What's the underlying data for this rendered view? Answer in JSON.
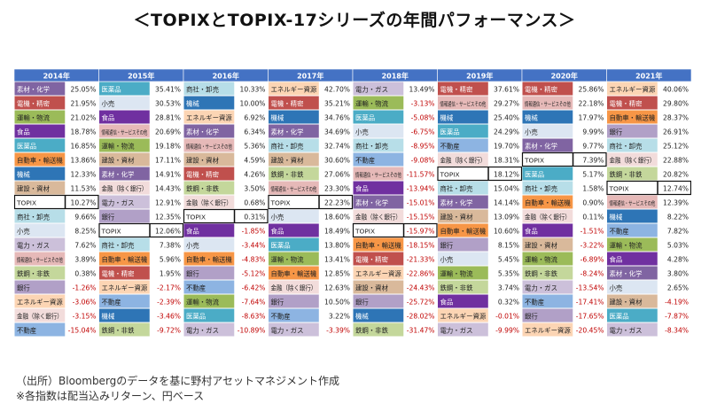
{
  "title": "＜TOPIXとTOPIX-17シリーズの年間パフォーマンス＞",
  "source_lines": [
    "（出所）Bloombergのデータを基に野村アセットマネジメント作成",
    "※各指数は配当込みリターン、円ベース"
  ],
  "colors": {
    "header_bg": "#4472c4",
    "header_text": "#ffffff",
    "sectors": {
      "素材・化学": "#8064a2",
      "電機・精密": "#c0504d",
      "運輸・物流": "#9bbb59",
      "食品": "#7030a0",
      "医薬品": "#4bacc6",
      "自動車・輸送機": "#f79646",
      "機械": "#2e75b6",
      "建設・資材": "#d9b99b",
      "TOPIX": "#ffffff",
      "商社・卸売": "#b7dee8",
      "小売": "#dce6f2",
      "電力・ガス": "#ccc0da",
      "情報通信・サービスその他": "#e6b9b8",
      "鉄鋼・非鉄": "#c4d79b",
      "銀行": "#b1a0c7",
      "エネルギー資源": "#fcd5b4",
      "金融（除く銀行）": "#f2dcdb",
      "不動産": "#8db4e2"
    }
  },
  "chart_data": {
    "type": "table",
    "title": "＜TOPIXとTOPIX-17シリーズの年間パフォーマンス＞",
    "years": [
      "2014年",
      "2015年",
      "2016年",
      "2017年",
      "2018年",
      "2019年",
      "2020年",
      "2021年"
    ],
    "columns": [
      {
        "year": "2014年",
        "rows": [
          {
            "name": "素材・化学",
            "value": "25.05%"
          },
          {
            "name": "電機・精密",
            "value": "21.95%"
          },
          {
            "name": "運輸・物流",
            "value": "21.02%"
          },
          {
            "name": "食品",
            "value": "18.78%"
          },
          {
            "name": "医薬品",
            "value": "16.85%"
          },
          {
            "name": "自動車・輸送機",
            "value": "13.86%"
          },
          {
            "name": "機械",
            "value": "12.33%"
          },
          {
            "name": "建設・資材",
            "value": "11.53%"
          },
          {
            "name": "TOPIX",
            "value": "10.27%"
          },
          {
            "name": "商社・卸売",
            "value": "9.66%"
          },
          {
            "name": "小売",
            "value": "8.25%"
          },
          {
            "name": "電力・ガス",
            "value": "7.62%"
          },
          {
            "name": "情報通信・サービスその他",
            "value": "3.89%"
          },
          {
            "name": "鉄鋼・非鉄",
            "value": "0.38%"
          },
          {
            "name": "銀行",
            "value": "-1.26%"
          },
          {
            "name": "エネルギー資源",
            "value": "-3.06%"
          },
          {
            "name": "金融（除く銀行）",
            "value": "-3.15%"
          },
          {
            "name": "不動産",
            "value": "-15.04%"
          }
        ]
      },
      {
        "year": "2015年",
        "rows": [
          {
            "name": "医薬品",
            "value": "35.41%"
          },
          {
            "name": "小売",
            "value": "30.53%"
          },
          {
            "name": "食品",
            "value": "28.81%"
          },
          {
            "name": "情報通信・サービスその他",
            "value": "20.69%"
          },
          {
            "name": "運輸・物流",
            "value": "19.18%"
          },
          {
            "name": "建設・資材",
            "value": "17.11%"
          },
          {
            "name": "素材・化学",
            "value": "14.91%"
          },
          {
            "name": "金融（除く銀行）",
            "value": "14.43%"
          },
          {
            "name": "電力・ガス",
            "value": "12.91%"
          },
          {
            "name": "銀行",
            "value": "12.35%"
          },
          {
            "name": "TOPIX",
            "value": "12.06%"
          },
          {
            "name": "商社・卸売",
            "value": "7.38%"
          },
          {
            "name": "自動車・輸送機",
            "value": "5.96%"
          },
          {
            "name": "電機・精密",
            "value": "1.95%"
          },
          {
            "name": "エネルギー資源",
            "value": "-2.17%"
          },
          {
            "name": "不動産",
            "value": "-2.39%"
          },
          {
            "name": "機械",
            "value": "-3.46%"
          },
          {
            "name": "鉄鋼・非鉄",
            "value": "-9.72%"
          }
        ]
      },
      {
        "year": "2016年",
        "rows": [
          {
            "name": "商社・卸売",
            "value": "10.33%"
          },
          {
            "name": "機械",
            "value": "10.00%"
          },
          {
            "name": "エネルギー資源",
            "value": "6.92%"
          },
          {
            "name": "素材・化学",
            "value": "6.34%"
          },
          {
            "name": "情報通信・サービスその他",
            "value": "5.36%"
          },
          {
            "name": "建設・資材",
            "value": "4.59%"
          },
          {
            "name": "電機・精密",
            "value": "4.26%"
          },
          {
            "name": "鉄鋼・非鉄",
            "value": "3.50%"
          },
          {
            "name": "金融（除く銀行）",
            "value": "0.68%"
          },
          {
            "name": "TOPIX",
            "value": "0.31%"
          },
          {
            "name": "食品",
            "value": "-1.85%"
          },
          {
            "name": "小売",
            "value": "-3.44%"
          },
          {
            "name": "自動車・輸送機",
            "value": "-4.83%"
          },
          {
            "name": "銀行",
            "value": "-5.12%"
          },
          {
            "name": "不動産",
            "value": "-6.42%"
          },
          {
            "name": "運輸・物流",
            "value": "-7.64%"
          },
          {
            "name": "医薬品",
            "value": "-8.63%"
          },
          {
            "name": "電力・ガス",
            "value": "-10.89%"
          }
        ]
      },
      {
        "year": "2017年",
        "rows": [
          {
            "name": "エネルギー資源",
            "value": "42.70%"
          },
          {
            "name": "電機・精密",
            "value": "35.21%"
          },
          {
            "name": "機械",
            "value": "34.76%"
          },
          {
            "name": "素材・化学",
            "value": "34.69%"
          },
          {
            "name": "商社・卸売",
            "value": "32.74%"
          },
          {
            "name": "建設・資材",
            "value": "30.60%"
          },
          {
            "name": "鉄鋼・非鉄",
            "value": "27.06%"
          },
          {
            "name": "情報通信・サービスその他",
            "value": "23.30%"
          },
          {
            "name": "TOPIX",
            "value": "22.23%"
          },
          {
            "name": "小売",
            "value": "18.60%"
          },
          {
            "name": "食品",
            "value": "18.49%"
          },
          {
            "name": "医薬品",
            "value": "13.80%"
          },
          {
            "name": "運輸・物流",
            "value": "13.41%"
          },
          {
            "name": "自動車・輸送機",
            "value": "12.85%"
          },
          {
            "name": "金融（除く銀行）",
            "value": "12.63%"
          },
          {
            "name": "銀行",
            "value": "10.50%"
          },
          {
            "name": "不動産",
            "value": "3.22%"
          },
          {
            "name": "電力・ガス",
            "value": "-3.39%"
          }
        ]
      },
      {
        "year": "2018年",
        "rows": [
          {
            "name": "電力・ガス",
            "value": "13.49%"
          },
          {
            "name": "運輸・物流",
            "value": "-3.13%"
          },
          {
            "name": "医薬品",
            "value": "-5.08%"
          },
          {
            "name": "小売",
            "value": "-6.75%"
          },
          {
            "name": "商社・卸売",
            "value": "-8.95%"
          },
          {
            "name": "不動産",
            "value": "-9.08%"
          },
          {
            "name": "情報通信・サービスその他",
            "value": "-11.57%"
          },
          {
            "name": "食品",
            "value": "-13.94%"
          },
          {
            "name": "素材・化学",
            "value": "-15.01%"
          },
          {
            "name": "金融（除く銀行）",
            "value": "-15.15%"
          },
          {
            "name": "TOPIX",
            "value": "-15.97%"
          },
          {
            "name": "自動車・輸送機",
            "value": "-18.15%"
          },
          {
            "name": "電機・精密",
            "value": "-21.33%"
          },
          {
            "name": "エネルギー資源",
            "value": "-22.86%"
          },
          {
            "name": "建設・資材",
            "value": "-24.43%"
          },
          {
            "name": "銀行",
            "value": "-25.72%"
          },
          {
            "name": "機械",
            "value": "-28.02%"
          },
          {
            "name": "鉄鋼・非鉄",
            "value": "-31.47%"
          }
        ]
      },
      {
        "year": "2019年",
        "rows": [
          {
            "name": "電機・精密",
            "value": "37.61%"
          },
          {
            "name": "情報通信・サービスその他",
            "value": "29.27%"
          },
          {
            "name": "機械",
            "value": "25.40%"
          },
          {
            "name": "医薬品",
            "value": "24.29%"
          },
          {
            "name": "不動産",
            "value": "19.70%"
          },
          {
            "name": "金融（除く銀行）",
            "value": "18.31%"
          },
          {
            "name": "TOPIX",
            "value": "18.12%"
          },
          {
            "name": "商社・卸売",
            "value": "15.04%"
          },
          {
            "name": "素材・化学",
            "value": "14.14%"
          },
          {
            "name": "建設・資材",
            "value": "13.09%"
          },
          {
            "name": "自動車・輸送機",
            "value": "10.60%"
          },
          {
            "name": "銀行",
            "value": "8.15%"
          },
          {
            "name": "小売",
            "value": "5.45%"
          },
          {
            "name": "運輸・物流",
            "value": "5.35%"
          },
          {
            "name": "鉄鋼・非鉄",
            "value": "3.74%"
          },
          {
            "name": "食品",
            "value": "0.32%"
          },
          {
            "name": "エネルギー資源",
            "value": "-0.01%"
          },
          {
            "name": "電力・ガス",
            "value": "-9.99%"
          }
        ]
      },
      {
        "year": "2020年",
        "rows": [
          {
            "name": "電機・精密",
            "value": "25.86%"
          },
          {
            "name": "情報通信・サービスその他",
            "value": "22.18%"
          },
          {
            "name": "機械",
            "value": "17.97%"
          },
          {
            "name": "小売",
            "value": "9.99%"
          },
          {
            "name": "素材・化学",
            "value": "9.77%"
          },
          {
            "name": "TOPIX",
            "value": "7.39%"
          },
          {
            "name": "医薬品",
            "value": "5.17%"
          },
          {
            "name": "商社・卸売",
            "value": "1.58%"
          },
          {
            "name": "自動車・輸送機",
            "value": "0.90%"
          },
          {
            "name": "金融（除く銀行）",
            "value": "0.11%"
          },
          {
            "name": "食品",
            "value": "-1.51%"
          },
          {
            "name": "建設・資材",
            "value": "-3.22%"
          },
          {
            "name": "運輸・物流",
            "value": "-6.89%"
          },
          {
            "name": "鉄鋼・非鉄",
            "value": "-8.24%"
          },
          {
            "name": "電力・ガス",
            "value": "-13.54%"
          },
          {
            "name": "不動産",
            "value": "-17.41%"
          },
          {
            "name": "銀行",
            "value": "-17.65%"
          },
          {
            "name": "エネルギー資源",
            "value": "-20.45%"
          }
        ]
      },
      {
        "year": "2021年",
        "rows": [
          {
            "name": "エネルギー資源",
            "value": "40.06%"
          },
          {
            "name": "電機・精密",
            "value": "29.80%"
          },
          {
            "name": "自動車・輸送機",
            "value": "28.37%"
          },
          {
            "name": "銀行",
            "value": "26.91%"
          },
          {
            "name": "商社・卸売",
            "value": "25.12%"
          },
          {
            "name": "金融（除く銀行）",
            "value": "22.88%"
          },
          {
            "name": "鉄鋼・非鉄",
            "value": "20.82%"
          },
          {
            "name": "TOPIX",
            "value": "12.74%"
          },
          {
            "name": "情報通信・サービスその他",
            "value": "12.39%"
          },
          {
            "name": "機械",
            "value": "8.22%"
          },
          {
            "name": "不動産",
            "value": "7.82%"
          },
          {
            "name": "運輸・物流",
            "value": "5.03%"
          },
          {
            "name": "食品",
            "value": "4.28%"
          },
          {
            "name": "素材・化学",
            "value": "3.80%"
          },
          {
            "name": "小売",
            "value": "2.65%"
          },
          {
            "name": "建設・資材",
            "value": "-4.19%"
          },
          {
            "name": "医薬品",
            "value": "-7.87%"
          },
          {
            "name": "電力・ガス",
            "value": "-8.34%"
          }
        ]
      }
    ]
  }
}
